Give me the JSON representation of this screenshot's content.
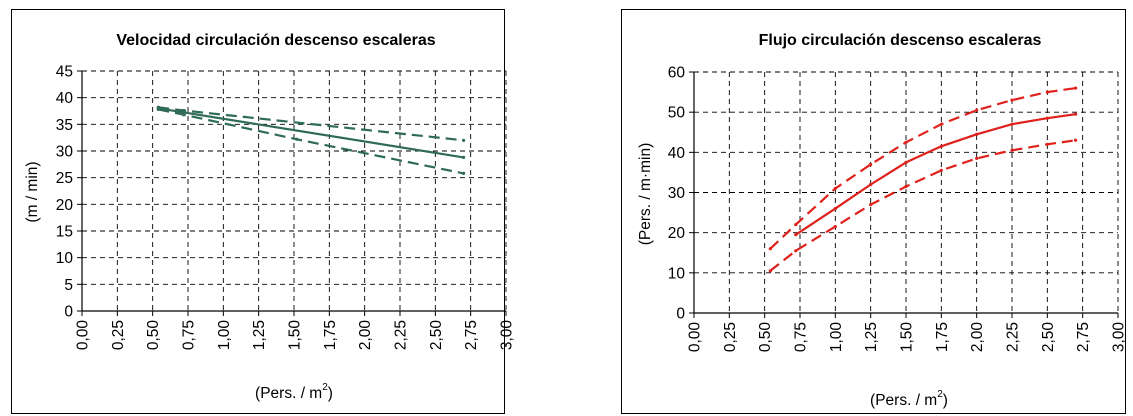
{
  "chart_data": [
    {
      "type": "line",
      "title": "Velocidad circulación descenso escaleras",
      "xlabel": "(Pers. / m",
      "xlabel_sup": "2",
      "xlabel_close": ")",
      "ylabel": "(m / min)",
      "xlim": [
        0,
        3
      ],
      "ylim": [
        0,
        45
      ],
      "xticks": [
        "0,00",
        "0,25",
        "0,50",
        "0,75",
        "1,00",
        "1,25",
        "1,50",
        "1,75",
        "2,00",
        "2,25",
        "2,50",
        "2,75",
        "3,00"
      ],
      "yticks": [
        "0",
        "5",
        "10",
        "15",
        "20",
        "25",
        "30",
        "35",
        "40",
        "45"
      ],
      "grid": true,
      "color": "#2f6b57",
      "series": [
        {
          "style": "solid",
          "x": [
            0.54,
            2.7
          ],
          "y": [
            38.0,
            28.8
          ]
        },
        {
          "style": "dashed",
          "x": [
            0.54,
            0.72,
            2.7
          ],
          "y": [
            38.2,
            37.6,
            32.0
          ]
        },
        {
          "style": "dashed",
          "x": [
            0.54,
            0.72,
            1.52,
            2.7
          ],
          "y": [
            37.8,
            36.8,
            32.2,
            25.8
          ]
        }
      ]
    },
    {
      "type": "line",
      "title": "Flujo circulación descenso escaleras",
      "xlabel": "(Pers. / m",
      "xlabel_sup": "2",
      "xlabel_close": ")",
      "ylabel": "(Pers. / m·min)",
      "xlim": [
        0,
        3
      ],
      "ylim": [
        0,
        60
      ],
      "xticks": [
        "0,00",
        "0,25",
        "0,50",
        "0,75",
        "1,00",
        "1,25",
        "1,50",
        "1,75",
        "2,00",
        "2,25",
        "2,50",
        "2,75",
        "3,00"
      ],
      "yticks": [
        "0",
        "10",
        "20",
        "30",
        "40",
        "50",
        "60"
      ],
      "grid": true,
      "color": "#e0201b",
      "series": [
        {
          "style": "solid",
          "x": [
            0.72,
            1.0,
            1.25,
            1.5,
            1.75,
            2.0,
            2.25,
            2.5,
            2.7
          ],
          "y": [
            19.5,
            26.0,
            32.0,
            37.5,
            41.5,
            44.5,
            47.0,
            48.5,
            49.5
          ]
        },
        {
          "style": "dashed",
          "x": [
            0.54,
            0.72,
            1.0,
            1.25,
            1.5,
            1.75,
            2.0,
            2.25,
            2.5,
            2.7
          ],
          "y": [
            16.0,
            22.0,
            31.0,
            37.0,
            42.5,
            47.0,
            50.5,
            53.0,
            55.0,
            56.0
          ]
        },
        {
          "style": "dashed",
          "x": [
            0.54,
            0.72,
            1.0,
            1.25,
            1.5,
            1.75,
            2.0,
            2.25,
            2.5,
            2.7
          ],
          "y": [
            10.5,
            15.5,
            21.5,
            27.0,
            31.5,
            35.5,
            38.5,
            40.5,
            42.0,
            43.0
          ]
        }
      ]
    }
  ]
}
